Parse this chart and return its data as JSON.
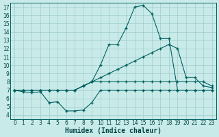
{
  "bg_color": "#c8eae8",
  "grid_color": "#a0ccca",
  "line_color": "#006060",
  "xlabel": "Humidex (Indice chaleur)",
  "xlim": [
    -0.5,
    23.5
  ],
  "ylim": [
    3.5,
    17.5
  ],
  "xticks": [
    0,
    1,
    2,
    3,
    4,
    5,
    6,
    7,
    8,
    9,
    10,
    11,
    12,
    13,
    14,
    15,
    16,
    17,
    18,
    19,
    20,
    21,
    22,
    23
  ],
  "yticks": [
    4,
    5,
    6,
    7,
    8,
    9,
    10,
    11,
    12,
    13,
    14,
    15,
    16,
    17
  ],
  "series": [
    {
      "x": [
        0,
        1,
        2,
        3,
        4,
        5,
        6,
        7,
        8,
        9,
        10,
        11,
        12,
        13,
        14,
        15,
        16,
        17,
        18,
        19,
        20,
        21,
        22,
        23
      ],
      "y": [
        7.0,
        6.8,
        6.7,
        6.8,
        5.5,
        5.6,
        4.5,
        4.5,
        4.6,
        5.5,
        7.0,
        7.0,
        7.0,
        7.0,
        7.0,
        7.0,
        7.0,
        7.0,
        7.0,
        7.0,
        7.0,
        7.0,
        7.0,
        7.0
      ]
    },
    {
      "x": [
        0,
        1,
        2,
        3,
        4,
        5,
        6,
        7,
        8,
        9,
        10,
        11,
        12,
        13,
        14,
        15,
        16,
        17,
        18,
        19,
        20,
        21,
        22,
        23
      ],
      "y": [
        7.0,
        7.0,
        7.0,
        7.0,
        7.0,
        7.0,
        7.0,
        7.0,
        7.5,
        8.0,
        8.0,
        8.0,
        8.0,
        8.0,
        8.0,
        8.0,
        8.0,
        8.0,
        8.0,
        8.0,
        8.0,
        8.0,
        8.0,
        7.5
      ]
    },
    {
      "x": [
        0,
        1,
        2,
        3,
        4,
        5,
        6,
        7,
        8,
        9,
        10,
        11,
        12,
        13,
        14,
        15,
        16,
        17,
        18,
        19,
        20,
        21,
        22,
        23
      ],
      "y": [
        7.0,
        7.0,
        7.0,
        7.0,
        7.0,
        7.0,
        7.0,
        7.0,
        7.5,
        8.0,
        8.5,
        9.0,
        9.5,
        10.0,
        10.5,
        11.0,
        11.5,
        12.0,
        12.5,
        12.0,
        8.5,
        8.5,
        7.5,
        7.3
      ]
    },
    {
      "x": [
        0,
        1,
        2,
        3,
        4,
        5,
        6,
        7,
        8,
        9,
        10,
        11,
        12,
        13,
        14,
        15,
        16,
        17,
        18,
        19,
        20,
        21,
        22,
        23
      ],
      "y": [
        7.0,
        7.0,
        7.0,
        7.0,
        7.0,
        7.0,
        7.0,
        7.0,
        7.5,
        8.0,
        10.0,
        12.5,
        12.5,
        14.5,
        17.0,
        17.2,
        16.2,
        13.2,
        13.2,
        7.0,
        7.0,
        7.0,
        7.0,
        7.0
      ]
    }
  ],
  "font_color": "#004444",
  "tick_fontsize": 5.5,
  "label_fontsize": 7,
  "figsize": [
    3.2,
    2.0
  ],
  "dpi": 100
}
